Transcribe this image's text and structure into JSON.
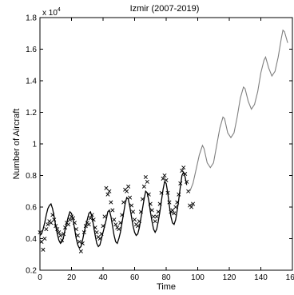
{
  "chart_data": {
    "type": "line",
    "title": "Izmir (2007-2019)",
    "xlabel": "Time",
    "ylabel": "Number of Aircraft",
    "y_multiplier_label": "x 10",
    "y_multiplier_exponent": "4",
    "xlim": [
      0,
      160
    ],
    "ylim": [
      0.2,
      1.8
    ],
    "x_ticks": [
      0,
      20,
      40,
      60,
      80,
      100,
      120,
      140,
      160
    ],
    "y_ticks": [
      0.2,
      0.4,
      0.6,
      0.8,
      1,
      1.2,
      1.4,
      1.6,
      1.8
    ],
    "x_tick_labels": [
      "0",
      "20",
      "40",
      "60",
      "80",
      "100",
      "120",
      "140",
      "160"
    ],
    "y_tick_labels": [
      "0.2",
      "0.4",
      "0.6",
      "0.8",
      "1",
      "1.2",
      "1.4",
      "1.6",
      "1.8"
    ],
    "grid": false,
    "series": [
      {
        "style": "x-markers",
        "color": "#000000",
        "points": [
          [
            0,
            0.44
          ],
          [
            1,
            0.38
          ],
          [
            2,
            0.33
          ],
          [
            3,
            0.4
          ],
          [
            4,
            0.46
          ],
          [
            5,
            0.49
          ],
          [
            6,
            0.51
          ],
          [
            7,
            0.5
          ],
          [
            8,
            0.55
          ],
          [
            9,
            0.52
          ],
          [
            10,
            0.48
          ],
          [
            11,
            0.46
          ],
          [
            12,
            0.44
          ],
          [
            13,
            0.42
          ],
          [
            14,
            0.39
          ],
          [
            15,
            0.43
          ],
          [
            16,
            0.47
          ],
          [
            17,
            0.5
          ],
          [
            18,
            0.49
          ],
          [
            19,
            0.52
          ],
          [
            20,
            0.54
          ],
          [
            21,
            0.53
          ],
          [
            22,
            0.5
          ],
          [
            23,
            0.46
          ],
          [
            24,
            0.42
          ],
          [
            25,
            0.38
          ],
          [
            26,
            0.32
          ],
          [
            27,
            0.37
          ],
          [
            28,
            0.44
          ],
          [
            29,
            0.48
          ],
          [
            30,
            0.5
          ],
          [
            31,
            0.49
          ],
          [
            32,
            0.53
          ],
          [
            33,
            0.55
          ],
          [
            34,
            0.52
          ],
          [
            35,
            0.47
          ],
          [
            36,
            0.44
          ],
          [
            37,
            0.41
          ],
          [
            38,
            0.4
          ],
          [
            39,
            0.43
          ],
          [
            40,
            0.48
          ],
          [
            41,
            0.54
          ],
          [
            42,
            0.72
          ],
          [
            43,
            0.68
          ],
          [
            44,
            0.7
          ],
          [
            45,
            0.63
          ],
          [
            46,
            0.58
          ],
          [
            47,
            0.52
          ],
          [
            48,
            0.49
          ],
          [
            49,
            0.47
          ],
          [
            50,
            0.46
          ],
          [
            51,
            0.5
          ],
          [
            52,
            0.55
          ],
          [
            53,
            0.63
          ],
          [
            54,
            0.71
          ],
          [
            55,
            0.7
          ],
          [
            56,
            0.73
          ],
          [
            57,
            0.66
          ],
          [
            58,
            0.61
          ],
          [
            59,
            0.57
          ],
          [
            60,
            0.52
          ],
          [
            61,
            0.49
          ],
          [
            62,
            0.48
          ],
          [
            63,
            0.51
          ],
          [
            64,
            0.57
          ],
          [
            65,
            0.65
          ],
          [
            66,
            0.73
          ],
          [
            67,
            0.79
          ],
          [
            68,
            0.76
          ],
          [
            69,
            0.68
          ],
          [
            70,
            0.62
          ],
          [
            71,
            0.58
          ],
          [
            72,
            0.54
          ],
          [
            73,
            0.51
          ],
          [
            74,
            0.54
          ],
          [
            75,
            0.57
          ],
          [
            76,
            0.62
          ],
          [
            77,
            0.69
          ],
          [
            78,
            0.78
          ],
          [
            79,
            0.8
          ],
          [
            80,
            0.77
          ],
          [
            81,
            0.69
          ],
          [
            82,
            0.63
          ],
          [
            83,
            0.57
          ],
          [
            84,
            0.58
          ],
          [
            85,
            0.56
          ],
          [
            86,
            0.6
          ],
          [
            87,
            0.63
          ],
          [
            88,
            0.68
          ],
          [
            89,
            0.75
          ],
          [
            90,
            0.83
          ],
          [
            91,
            0.85
          ],
          [
            92,
            0.81
          ],
          [
            93,
            0.76
          ],
          [
            94,
            0.7
          ],
          [
            95,
            0.61
          ],
          [
            96,
            0.6
          ],
          [
            97,
            0.62
          ]
        ]
      },
      {
        "style": "fitted-line",
        "color": "#000000",
        "points": [
          [
            0,
            0.42
          ],
          [
            1,
            0.43
          ],
          [
            2,
            0.46
          ],
          [
            3,
            0.5
          ],
          [
            4,
            0.55
          ],
          [
            5,
            0.59
          ],
          [
            6,
            0.61
          ],
          [
            7,
            0.62
          ],
          [
            8,
            0.59
          ],
          [
            9,
            0.54
          ],
          [
            10,
            0.48
          ],
          [
            11,
            0.43
          ],
          [
            12,
            0.39
          ],
          [
            13,
            0.37
          ],
          [
            14,
            0.38
          ],
          [
            15,
            0.41
          ],
          [
            16,
            0.46
          ],
          [
            17,
            0.5
          ],
          [
            18,
            0.54
          ],
          [
            19,
            0.57
          ],
          [
            20,
            0.56
          ],
          [
            21,
            0.52
          ],
          [
            22,
            0.46
          ],
          [
            23,
            0.4
          ],
          [
            24,
            0.36
          ],
          [
            25,
            0.34
          ],
          [
            26,
            0.35
          ],
          [
            27,
            0.39
          ],
          [
            28,
            0.44
          ],
          [
            29,
            0.48
          ],
          [
            30,
            0.52
          ],
          [
            31,
            0.56
          ],
          [
            32,
            0.57
          ],
          [
            33,
            0.54
          ],
          [
            34,
            0.48
          ],
          [
            35,
            0.42
          ],
          [
            36,
            0.37
          ],
          [
            37,
            0.35
          ],
          [
            38,
            0.36
          ],
          [
            39,
            0.4
          ],
          [
            40,
            0.44
          ],
          [
            41,
            0.48
          ],
          [
            42,
            0.52
          ],
          [
            43,
            0.57
          ],
          [
            44,
            0.58
          ],
          [
            45,
            0.54
          ],
          [
            46,
            0.48
          ],
          [
            47,
            0.42
          ],
          [
            48,
            0.38
          ],
          [
            49,
            0.37
          ],
          [
            50,
            0.4
          ],
          [
            51,
            0.44
          ],
          [
            52,
            0.5
          ],
          [
            53,
            0.56
          ],
          [
            54,
            0.62
          ],
          [
            55,
            0.66
          ],
          [
            56,
            0.65
          ],
          [
            57,
            0.6
          ],
          [
            58,
            0.54
          ],
          [
            59,
            0.48
          ],
          [
            60,
            0.44
          ],
          [
            61,
            0.42
          ],
          [
            62,
            0.43
          ],
          [
            63,
            0.47
          ],
          [
            64,
            0.53
          ],
          [
            65,
            0.59
          ],
          [
            66,
            0.65
          ],
          [
            67,
            0.7
          ],
          [
            68,
            0.69
          ],
          [
            69,
            0.64
          ],
          [
            70,
            0.57
          ],
          [
            71,
            0.51
          ],
          [
            72,
            0.46
          ],
          [
            73,
            0.44
          ],
          [
            74,
            0.46
          ],
          [
            75,
            0.51
          ],
          [
            76,
            0.57
          ],
          [
            77,
            0.64
          ],
          [
            78,
            0.71
          ],
          [
            79,
            0.76
          ],
          [
            80,
            0.75
          ],
          [
            81,
            0.69
          ],
          [
            82,
            0.61
          ],
          [
            83,
            0.54
          ],
          [
            84,
            0.5
          ],
          [
            85,
            0.49
          ],
          [
            86,
            0.52
          ],
          [
            87,
            0.58
          ],
          [
            88,
            0.65
          ],
          [
            89,
            0.73
          ],
          [
            90,
            0.8
          ],
          [
            91,
            0.82
          ],
          [
            92,
            0.79
          ],
          [
            93,
            0.74
          ]
        ]
      },
      {
        "style": "forecast-line",
        "color": "#7f7f7f",
        "points": [
          [
            95,
            0.7
          ],
          [
            97,
            0.75
          ],
          [
            99,
            0.84
          ],
          [
            101,
            0.93
          ],
          [
            103,
            0.99
          ],
          [
            104,
            0.97
          ],
          [
            106,
            0.88
          ],
          [
            108,
            0.85
          ],
          [
            110,
            0.88
          ],
          [
            112,
            0.99
          ],
          [
            114,
            1.1
          ],
          [
            116,
            1.17
          ],
          [
            117,
            1.16
          ],
          [
            119,
            1.07
          ],
          [
            121,
            1.04
          ],
          [
            123,
            1.07
          ],
          [
            125,
            1.17
          ],
          [
            127,
            1.29
          ],
          [
            129,
            1.36
          ],
          [
            130,
            1.35
          ],
          [
            132,
            1.27
          ],
          [
            134,
            1.22
          ],
          [
            136,
            1.25
          ],
          [
            138,
            1.33
          ],
          [
            140,
            1.45
          ],
          [
            142,
            1.53
          ],
          [
            143,
            1.55
          ],
          [
            145,
            1.48
          ],
          [
            147,
            1.43
          ],
          [
            149,
            1.46
          ],
          [
            151,
            1.55
          ],
          [
            153,
            1.67
          ],
          [
            154,
            1.72
          ],
          [
            155,
            1.71
          ],
          [
            157,
            1.64
          ]
        ]
      }
    ]
  }
}
